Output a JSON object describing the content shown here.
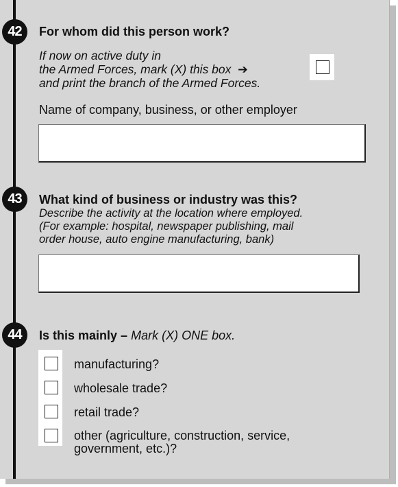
{
  "q42": {
    "number": "42",
    "title": "For whom did this person work?",
    "instruction_lines": [
      "If now on active duty in",
      "the Armed Forces, mark (X) this box",
      "and print the branch of the Armed Forces."
    ],
    "arrow": "➔",
    "field_label": "Name of company, business, or other employer",
    "field_value": ""
  },
  "q43": {
    "number": "43",
    "title": "What kind of business or industry was this?",
    "instruction_lines": [
      "Describe the activity at the location where employed.",
      "(For example: hospital, newspaper publishing, mail",
      "order house, auto engine manufacturing, bank)"
    ],
    "field_value": ""
  },
  "q44": {
    "number": "44",
    "title": "Is this mainly –",
    "instruction": "Mark (X) ONE box.",
    "options": [
      {
        "label": "manufacturing?"
      },
      {
        "label": "wholesale trade?"
      },
      {
        "label": "retail trade?"
      },
      {
        "label_lines": [
          "other (agriculture, construction, service,",
          "government, etc.)?"
        ]
      }
    ]
  }
}
